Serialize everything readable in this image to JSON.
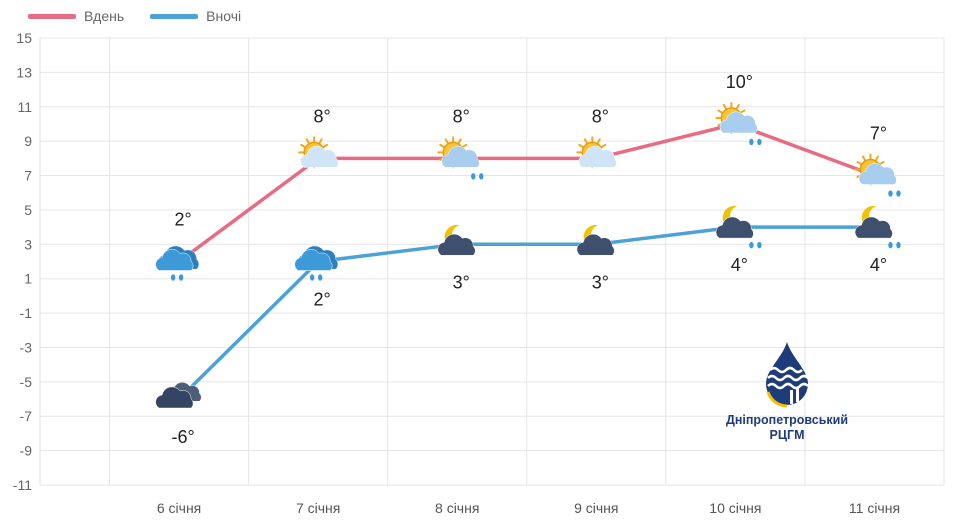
{
  "chart_data": {
    "type": "line",
    "categories": [
      "6 січня",
      "7 січня",
      "8 січня",
      "9 січня",
      "10 січня",
      "11 січня"
    ],
    "series": [
      {
        "name": "Вдень",
        "values": [
          2,
          8,
          8,
          8,
          10,
          7
        ],
        "labels": [
          "2°",
          "8°",
          "8°",
          "8°",
          "10°",
          "7°"
        ],
        "color": "#e86b84",
        "icons": [
          "cloud-rain-icon",
          "sun-cloud-icon",
          "sun-cloud-rain-icon",
          "sun-cloud-icon",
          "sun-cloud-rain-icon",
          "sun-cloud-rain-icon"
        ]
      },
      {
        "name": "Вночі",
        "values": [
          -6,
          2,
          3,
          3,
          4,
          4
        ],
        "labels": [
          "-6°",
          "2°",
          "3°",
          "3°",
          "4°",
          "4°"
        ],
        "color": "#4aa2d6",
        "icons": [
          "cloud-overcast-icon",
          "cloud-rain-icon",
          "moon-cloud-icon",
          "moon-cloud-icon",
          "moon-cloud-rain-icon",
          "moon-cloud-rain-icon"
        ]
      }
    ],
    "yticks": [
      15,
      13,
      11,
      9,
      7,
      5,
      3,
      1,
      -1,
      -3,
      -5,
      -7,
      -9,
      -11
    ],
    "ylim": [
      -11,
      15
    ],
    "grid": true,
    "legend_position": "top-left"
  },
  "logo": {
    "line1": "Дніпропетровський",
    "line2": "РЦГМ"
  }
}
